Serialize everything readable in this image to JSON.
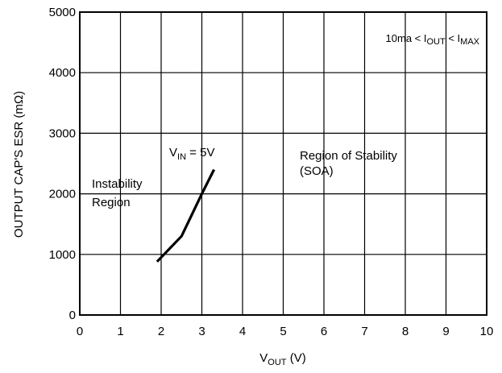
{
  "chart_data": {
    "type": "line",
    "x": [
      1.9,
      2.5,
      3.0,
      3.3
    ],
    "series": [
      {
        "name": "V_IN = 5V",
        "values": [
          880,
          1300,
          2000,
          2400
        ]
      }
    ],
    "xlim": [
      0,
      10
    ],
    "ylim": [
      0,
      5000
    ],
    "x_ticks": [
      0,
      1,
      2,
      3,
      4,
      5,
      6,
      7,
      8,
      9,
      10
    ],
    "y_ticks": [
      0,
      1000,
      2000,
      3000,
      4000,
      5000
    ],
    "grid": true,
    "ylabel": "OUTPUT CAP'S ESR (mΩ)",
    "xlabel": {
      "main": "V",
      "sub": "OUT",
      "rest": " (V)"
    },
    "series_label": {
      "main": "V",
      "sub": "IN",
      "rest": " = 5V"
    },
    "annotations": {
      "condition": {
        "p1": "10ma < I",
        "s1": "OUT",
        "p2": " < I",
        "s2": "MAX"
      },
      "instability": [
        "Instability",
        "Region"
      ],
      "stability": [
        "Region of Stability",
        "(SOA)"
      ]
    }
  }
}
